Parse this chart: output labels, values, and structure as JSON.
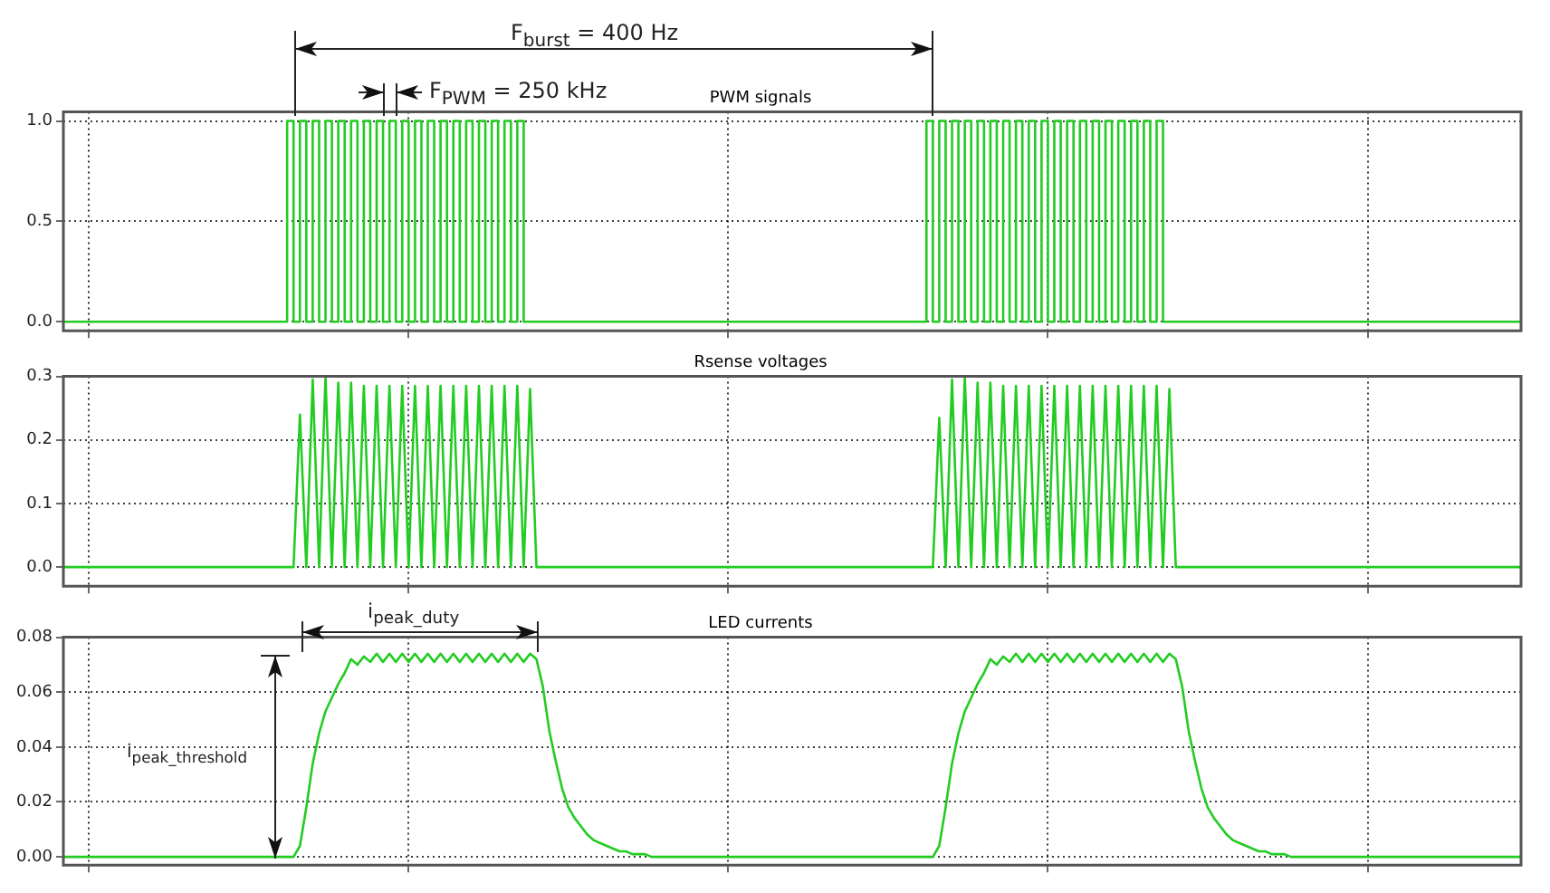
{
  "chart_data": [
    {
      "type": "step",
      "title": "PWM signals",
      "annotations": [
        "F$_{burst}$ = 400 Hz",
        "F$_{PWM}$ = 250 kHz"
      ],
      "color": "#22cc22",
      "marker": "none",
      "grid": true,
      "legend": false,
      "tick_labels": "y",
      "ylim": [
        -0.045,
        1.045
      ],
      "yticks": [
        {
          "value": 0,
          "label": "0.0"
        },
        {
          "value": 0.5,
          "label": "0.5"
        },
        {
          "value": 1,
          "label": "1.0"
        }
      ],
      "categories": [
        null,
        null,
        null,
        null,
        null,
        null,
        null,
        null,
        null,
        null,
        null,
        null,
        null,
        null,
        null,
        null,
        null,
        null,
        null,
        null,
        null,
        null,
        null,
        null,
        null,
        null,
        null,
        null,
        null,
        null,
        null,
        null,
        null,
        null,
        null,
        null,
        null,
        null,
        null,
        null,
        null,
        null,
        null,
        null,
        null,
        null,
        null,
        null,
        null,
        null,
        null,
        null,
        null,
        null,
        null,
        null,
        null,
        null,
        null,
        null,
        null,
        null,
        null,
        null,
        null,
        null,
        null,
        null,
        null,
        null,
        null,
        null,
        null,
        null,
        null,
        null,
        null,
        null,
        null,
        null,
        null,
        null,
        null,
        null,
        null,
        null,
        null,
        null,
        null,
        null,
        null,
        null,
        null,
        null,
        null,
        null,
        null,
        null,
        null,
        null,
        null,
        null,
        null,
        null,
        null,
        null,
        null,
        null,
        null,
        null,
        null,
        null,
        null,
        null,
        null,
        null,
        null,
        null,
        null,
        null,
        null,
        null,
        null,
        null,
        null,
        null,
        null,
        null,
        null,
        null,
        null,
        null,
        null,
        null,
        null,
        null,
        null,
        null,
        null,
        null,
        null,
        null,
        null,
        null,
        null,
        null,
        null,
        null,
        null,
        null,
        null,
        null,
        null,
        null,
        null,
        null,
        null,
        null,
        null,
        null,
        null,
        null,
        null,
        null,
        null,
        null,
        null,
        null,
        null,
        null,
        null,
        null,
        null,
        null,
        null,
        null,
        null,
        null,
        null,
        null,
        null,
        null,
        null,
        null,
        null,
        null,
        null,
        null,
        null,
        null,
        null,
        null,
        null,
        null,
        null,
        null,
        null,
        null,
        null,
        null,
        null,
        null,
        null,
        null,
        null,
        null,
        null,
        null,
        null,
        null,
        null,
        null,
        null,
        null,
        null,
        null,
        null,
        null,
        null,
        null,
        null,
        null,
        null,
        null,
        null,
        null,
        null,
        null,
        null
      ],
      "values": [
        0,
        0,
        0,
        0,
        0,
        0,
        0,
        0,
        0,
        0,
        0,
        0,
        0,
        0,
        0,
        0,
        0,
        0,
        0,
        0,
        0,
        0,
        0,
        0,
        0,
        0,
        0,
        0,
        0,
        0,
        0,
        0,
        0,
        0,
        0,
        0,
        1,
        0,
        1,
        0,
        1,
        0,
        1,
        0,
        1,
        0,
        1,
        0,
        1,
        0,
        1,
        0,
        1,
        0,
        1,
        0,
        1,
        0,
        1,
        0,
        1,
        0,
        1,
        0,
        1,
        0,
        1,
        0,
        1,
        0,
        1,
        0,
        1,
        0,
        0,
        0,
        0,
        0,
        0,
        0,
        0,
        0,
        0,
        0,
        0,
        0,
        0,
        0,
        0,
        0,
        0,
        0,
        0,
        0,
        0,
        0,
        0,
        0,
        0,
        0,
        0,
        0,
        0,
        0,
        0,
        0,
        0,
        0,
        0,
        0,
        0,
        0,
        0,
        0,
        0,
        0,
        0,
        0,
        0,
        0,
        0,
        0,
        0,
        0,
        0,
        0,
        0,
        0,
        0,
        0,
        0,
        0,
        0,
        0,
        0,
        0,
        1,
        0,
        1,
        0,
        1,
        0,
        1,
        0,
        1,
        0,
        1,
        0,
        1,
        0,
        1,
        0,
        1,
        0,
        1,
        0,
        1,
        0,
        1,
        0,
        1,
        0,
        1,
        0,
        1,
        0,
        1,
        0,
        1,
        0,
        1,
        0,
        1,
        0,
        0,
        0,
        0,
        0,
        0,
        0,
        0,
        0,
        0,
        0,
        0,
        0,
        0,
        0,
        0,
        0,
        0,
        0,
        0,
        0,
        0,
        0,
        0,
        0,
        0,
        0,
        0,
        0,
        0,
        0,
        0,
        0,
        0,
        0,
        0,
        0,
        0,
        0,
        0,
        0,
        0,
        0,
        0,
        0,
        0,
        0,
        0,
        0,
        0,
        0,
        0,
        0,
        0,
        0,
        0
      ]
    },
    {
      "type": "line",
      "title": "Rsense voltages",
      "color": "#22cc22",
      "marker": "none",
      "grid": true,
      "legend": false,
      "tick_labels": "y",
      "ylim": [
        -0.03,
        0.3
      ],
      "yticks": [
        {
          "value": 0,
          "label": "0.0"
        },
        {
          "value": 0.1,
          "label": "0.1"
        },
        {
          "value": 0.2,
          "label": "0.2"
        },
        {
          "value": 0.3,
          "label": "0.3"
        }
      ],
      "categories": [
        null,
        null,
        null,
        null,
        null,
        null,
        null,
        null,
        null,
        null,
        null,
        null,
        null,
        null,
        null,
        null,
        null,
        null,
        null,
        null,
        null,
        null,
        null,
        null,
        null,
        null,
        null,
        null,
        null,
        null,
        null,
        null,
        null,
        null,
        null,
        null,
        null,
        null,
        null,
        null,
        null,
        null,
        null,
        null,
        null,
        null,
        null,
        null,
        null,
        null,
        null,
        null,
        null,
        null,
        null,
        null,
        null,
        null,
        null,
        null,
        null,
        null,
        null,
        null,
        null,
        null,
        null,
        null,
        null,
        null,
        null,
        null,
        null,
        null,
        null,
        null,
        null,
        null,
        null,
        null,
        null,
        null,
        null,
        null,
        null,
        null,
        null,
        null,
        null,
        null,
        null,
        null,
        null,
        null,
        null,
        null,
        null,
        null,
        null,
        null,
        null,
        null,
        null,
        null,
        null,
        null,
        null,
        null,
        null,
        null,
        null,
        null,
        null,
        null,
        null,
        null,
        null,
        null,
        null,
        null,
        null,
        null,
        null,
        null,
        null,
        null,
        null,
        null,
        null,
        null,
        null,
        null,
        null,
        null,
        null,
        null,
        null,
        null,
        null,
        null,
        null,
        null,
        null,
        null,
        null,
        null,
        null,
        null,
        null,
        null,
        null,
        null,
        null,
        null,
        null,
        null,
        null,
        null,
        null,
        null,
        null,
        null,
        null,
        null,
        null,
        null,
        null,
        null,
        null,
        null,
        null,
        null,
        null,
        null,
        null,
        null,
        null,
        null,
        null,
        null,
        null,
        null,
        null,
        null,
        null,
        null,
        null,
        null,
        null,
        null,
        null,
        null,
        null,
        null,
        null,
        null,
        null,
        null,
        null,
        null,
        null,
        null,
        null,
        null,
        null,
        null,
        null,
        null,
        null,
        null,
        null,
        null,
        null,
        null,
        null,
        null,
        null,
        null,
        null,
        null,
        null,
        null,
        null,
        null,
        null,
        null,
        null,
        null,
        null
      ],
      "values": [
        0,
        0,
        0,
        0,
        0,
        0,
        0,
        0,
        0,
        0,
        0,
        0,
        0,
        0,
        0,
        0,
        0,
        0,
        0,
        0,
        0,
        0,
        0,
        0,
        0,
        0,
        0,
        0,
        0,
        0,
        0,
        0,
        0,
        0,
        0,
        0,
        0,
        0.24,
        0,
        0.295,
        0,
        0.3,
        0,
        0.29,
        0,
        0.29,
        0,
        0.285,
        0,
        0.285,
        0,
        0.285,
        0,
        0.285,
        0,
        0.285,
        0,
        0.285,
        0,
        0.285,
        0,
        0.285,
        0,
        0.285,
        0,
        0.285,
        0,
        0.285,
        0,
        0.285,
        0,
        0.285,
        0,
        0.28,
        0,
        0,
        0,
        0,
        0,
        0,
        0,
        0,
        0,
        0,
        0,
        0,
        0,
        0,
        0,
        0,
        0,
        0,
        0,
        0,
        0,
        0,
        0,
        0,
        0,
        0,
        0,
        0,
        0,
        0,
        0,
        0,
        0,
        0,
        0,
        0,
        0,
        0,
        0,
        0,
        0,
        0,
        0,
        0,
        0,
        0,
        0,
        0,
        0,
        0,
        0,
        0,
        0,
        0,
        0,
        0,
        0,
        0,
        0,
        0,
        0,
        0,
        0,
        0.235,
        0,
        0.295,
        0,
        0.3,
        0,
        0.29,
        0,
        0.29,
        0,
        0.285,
        0,
        0.285,
        0,
        0.285,
        0,
        0.285,
        0,
        0.285,
        0,
        0.285,
        0,
        0.285,
        0,
        0.285,
        0,
        0.285,
        0,
        0.285,
        0,
        0.285,
        0,
        0.285,
        0,
        0.285,
        0,
        0.28,
        0,
        0,
        0,
        0,
        0,
        0,
        0,
        0,
        0,
        0,
        0,
        0,
        0,
        0,
        0,
        0,
        0,
        0,
        0,
        0,
        0,
        0,
        0,
        0,
        0,
        0,
        0,
        0,
        0,
        0,
        0,
        0,
        0,
        0,
        0,
        0,
        0,
        0,
        0,
        0,
        0,
        0,
        0,
        0,
        0,
        0,
        0,
        0,
        0,
        0,
        0,
        0,
        0,
        0,
        0
      ]
    },
    {
      "type": "line",
      "title": "LED currents",
      "annotations": [
        "i$_{peak_duty}$",
        "i$_{peak_threshold}$"
      ],
      "color": "#22cc22",
      "marker": "none",
      "grid": true,
      "legend": false,
      "tick_labels": "y",
      "ylim": [
        -0.003,
        0.08
      ],
      "yticks": [
        {
          "value": 0,
          "label": "0.00"
        },
        {
          "value": 0.02,
          "label": "0.02"
        },
        {
          "value": 0.04,
          "label": "0.04"
        },
        {
          "value": 0.06,
          "label": "0.06"
        },
        {
          "value": 0.08,
          "label": "0.08"
        }
      ],
      "categories": [
        null,
        null,
        null,
        null,
        null,
        null,
        null,
        null,
        null,
        null,
        null,
        null,
        null,
        null,
        null,
        null,
        null,
        null,
        null,
        null,
        null,
        null,
        null,
        null,
        null,
        null,
        null,
        null,
        null,
        null,
        null,
        null,
        null,
        null,
        null,
        null,
        null,
        null,
        null,
        null,
        null,
        null,
        null,
        null,
        null,
        null,
        null,
        null,
        null,
        null,
        null,
        null,
        null,
        null,
        null,
        null,
        null,
        null,
        null,
        null,
        null,
        null,
        null,
        null,
        null,
        null,
        null,
        null,
        null,
        null,
        null,
        null,
        null,
        null,
        null,
        null,
        null,
        null,
        null,
        null,
        null,
        null,
        null,
        null,
        null,
        null,
        null,
        null,
        null,
        null,
        null,
        null,
        null,
        null,
        null,
        null,
        null,
        null,
        null,
        null,
        null,
        null,
        null,
        null,
        null,
        null,
        null,
        null,
        null,
        null,
        null,
        null,
        null,
        null,
        null,
        null,
        null,
        null,
        null,
        null,
        null,
        null,
        null,
        null,
        null,
        null,
        null,
        null,
        null,
        null,
        null,
        null,
        null,
        null,
        null,
        null,
        null,
        null,
        null,
        null,
        null,
        null,
        null,
        null,
        null,
        null,
        null,
        null,
        null,
        null,
        null,
        null,
        null,
        null,
        null,
        null,
        null,
        null,
        null,
        null,
        null,
        null,
        null,
        null,
        null,
        null,
        null,
        null,
        null,
        null,
        null,
        null,
        null,
        null,
        null,
        null,
        null,
        null,
        null,
        null,
        null,
        null,
        null,
        null,
        null,
        null,
        null,
        null,
        null,
        null,
        null,
        null,
        null,
        null,
        null,
        null,
        null,
        null,
        null,
        null,
        null,
        null,
        null,
        null,
        null,
        null,
        null,
        null,
        null,
        null,
        null,
        null,
        null,
        null,
        null,
        null,
        null,
        null,
        null,
        null,
        null,
        null,
        null,
        null,
        null,
        null,
        null,
        null,
        null
      ],
      "values": [
        0,
        0,
        0,
        0,
        0,
        0,
        0,
        0,
        0,
        0,
        0,
        0,
        0,
        0,
        0,
        0,
        0,
        0,
        0,
        0,
        0,
        0,
        0,
        0,
        0,
        0,
        0,
        0,
        0,
        0,
        0,
        0,
        0,
        0,
        0,
        0,
        0,
        0.004,
        0.018,
        0.034,
        0.045,
        0.053,
        0.058,
        0.063,
        0.067,
        0.072,
        0.07,
        0.073,
        0.071,
        0.074,
        0.071,
        0.074,
        0.071,
        0.074,
        0.071,
        0.074,
        0.071,
        0.074,
        0.071,
        0.074,
        0.071,
        0.074,
        0.071,
        0.074,
        0.071,
        0.074,
        0.071,
        0.074,
        0.071,
        0.074,
        0.071,
        0.074,
        0.071,
        0.074,
        0.072,
        0.062,
        0.046,
        0.035,
        0.025,
        0.018,
        0.014,
        0.011,
        0.008,
        0.006,
        0.005,
        0.004,
        0.003,
        0.002,
        0.002,
        0.001,
        0.001,
        0.001,
        0,
        0,
        0,
        0,
        0,
        0,
        0,
        0,
        0,
        0,
        0,
        0,
        0,
        0,
        0,
        0,
        0,
        0,
        0,
        0,
        0,
        0,
        0,
        0,
        0,
        0,
        0,
        0,
        0,
        0,
        0,
        0,
        0,
        0,
        0,
        0,
        0,
        0,
        0,
        0,
        0,
        0,
        0,
        0,
        0,
        0.004,
        0.018,
        0.034,
        0.045,
        0.053,
        0.058,
        0.063,
        0.067,
        0.072,
        0.07,
        0.073,
        0.071,
        0.074,
        0.071,
        0.074,
        0.071,
        0.074,
        0.071,
        0.074,
        0.071,
        0.074,
        0.071,
        0.074,
        0.071,
        0.074,
        0.071,
        0.074,
        0.071,
        0.074,
        0.071,
        0.074,
        0.071,
        0.074,
        0.071,
        0.074,
        0.071,
        0.074,
        0.072,
        0.062,
        0.046,
        0.035,
        0.025,
        0.018,
        0.014,
        0.011,
        0.008,
        0.006,
        0.005,
        0.004,
        0.003,
        0.002,
        0.002,
        0.001,
        0.001,
        0.001,
        0,
        0,
        0,
        0,
        0,
        0,
        0,
        0,
        0,
        0,
        0,
        0,
        0,
        0,
        0,
        0,
        0,
        0,
        0,
        0,
        0,
        0,
        0,
        0,
        0,
        0,
        0,
        0,
        0,
        0,
        0,
        0,
        0,
        0,
        0,
        0,
        0
      ]
    }
  ]
}
